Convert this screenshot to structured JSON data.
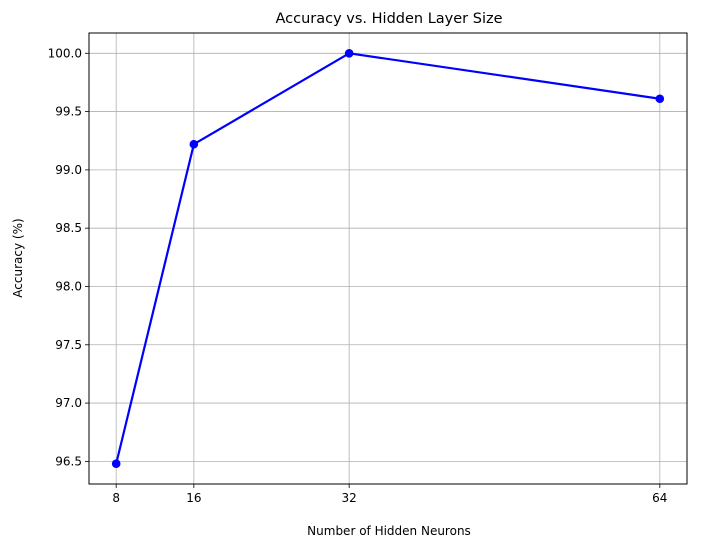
{
  "chart_data": {
    "type": "line",
    "title": "Accuracy vs. Hidden Layer Size",
    "xlabel": "Number of Hidden Neurons",
    "ylabel": "Accuracy (%)",
    "x": [
      8,
      16,
      32,
      64
    ],
    "series": [
      {
        "values": [
          96.48,
          99.22,
          100.0,
          99.61
        ],
        "color": "#0000ff",
        "marker": "circle"
      }
    ],
    "xticks": [
      8,
      16,
      32,
      64
    ],
    "xtick_labels": [
      "8",
      "16",
      "32",
      "64"
    ],
    "yticks": [
      96.5,
      97.0,
      97.5,
      98.0,
      98.5,
      99.0,
      99.5,
      100.0
    ],
    "ytick_labels": [
      "96.5",
      "97.0",
      "97.5",
      "98.0",
      "98.5",
      "99.0",
      "99.5",
      "100.0"
    ],
    "xlim": [
      5.2,
      66.8
    ],
    "ylim": [
      96.306,
      100.174
    ],
    "grid": true,
    "colors": {
      "line": "#0000ff",
      "grid": "#b0b0b0",
      "axes": "#000000"
    }
  }
}
